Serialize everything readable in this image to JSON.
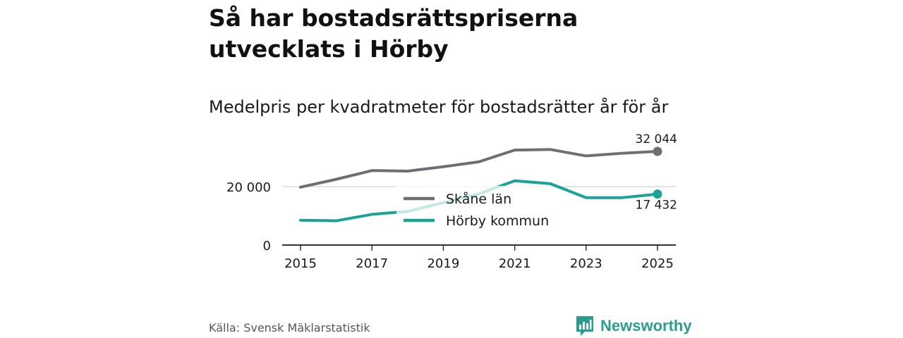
{
  "title": "Så har bostadsrättspriserna utvecklats i Hörby",
  "subtitle": "Medelpris per kvadratmeter för bostadsrätter år för år",
  "source": "Källa: Svensk Mäklarstatistik",
  "logo": {
    "text": "Newsworthy",
    "icon": "newsworthy-logo-icon",
    "color": "#2a9d90"
  },
  "chart_data": {
    "type": "line",
    "title": "Så har bostadsrättspriserna utvecklats i Hörby",
    "subtitle": "Medelpris per kvadratmeter för bostadsrätter år för år",
    "xlabel": "",
    "ylabel": "",
    "x": [
      2015,
      2016,
      2017,
      2018,
      2019,
      2020,
      2021,
      2022,
      2023,
      2024,
      2025
    ],
    "xticks": [
      "2015",
      "2017",
      "2019",
      "2021",
      "2023",
      "2025"
    ],
    "yticks": [
      {
        "value": 0,
        "label": "0"
      },
      {
        "value": 20000,
        "label": "20 000"
      }
    ],
    "ylim": [
      0,
      36000
    ],
    "grid": true,
    "legend": "center",
    "series": [
      {
        "name": "Skåne län",
        "color": "#6e6e76",
        "values": [
          19800,
          22500,
          25500,
          25300,
          26800,
          28500,
          32500,
          32700,
          30500,
          31400,
          32044
        ],
        "end_label": "32 044"
      },
      {
        "name": "Hörby kommun",
        "color": "#1aa396",
        "values": [
          8500,
          8300,
          10500,
          11500,
          14500,
          17500,
          22000,
          21000,
          16200,
          16200,
          17432
        ],
        "end_label": "17 432"
      }
    ]
  }
}
